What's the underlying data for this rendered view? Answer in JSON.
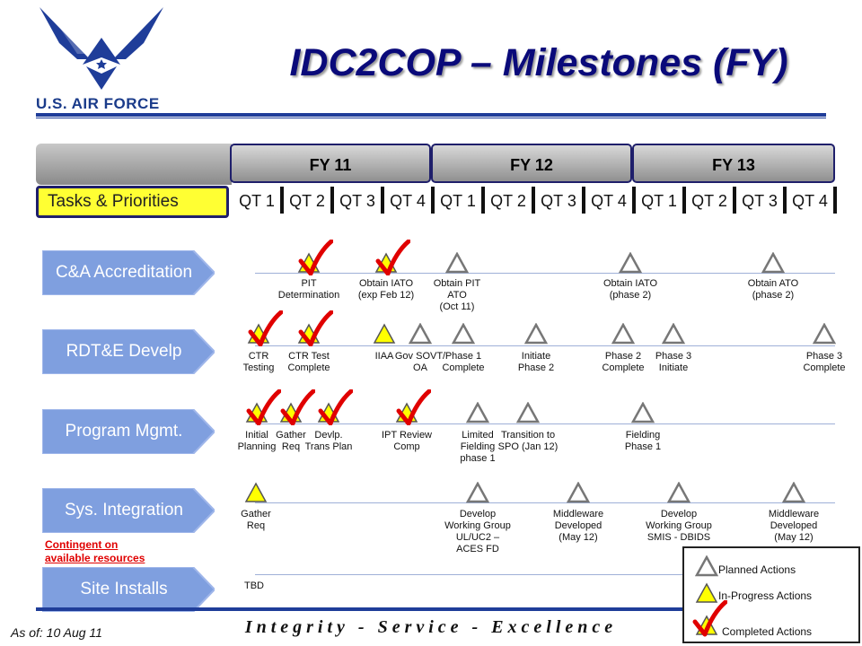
{
  "header": {
    "brand": "U.S. AIR FORCE",
    "title": "IDC2COP – Milestones (FY)"
  },
  "timeline": {
    "fiscal_years": [
      "FY 11",
      "FY 12",
      "FY 13"
    ],
    "tasks_label": "Tasks & Priorities",
    "quarters": [
      "QT 1",
      "QT 2",
      "QT 3",
      "QT 4",
      "QT 1",
      "QT 2",
      "QT 3",
      "QT 4",
      "QT 1",
      "QT 2",
      "QT 3",
      "QT 4"
    ]
  },
  "categories": [
    "C&A Accreditation",
    "RDT&E Develp",
    "Program Mgmt.",
    "Sys. Integration",
    "Site Installs"
  ],
  "milestones": {
    "ca": [
      {
        "status": "completed",
        "label": "PIT\nDetermination"
      },
      {
        "status": "completed",
        "label": "Obtain IATO\n(exp Feb 12)"
      },
      {
        "status": "planned",
        "label": "Obtain PIT\nATO\n(Oct 11)"
      },
      {
        "status": "planned",
        "label": "Obtain IATO\n(phase 2)"
      },
      {
        "status": "planned",
        "label": "Obtain ATO\n(phase 2)"
      }
    ],
    "rdte": [
      {
        "status": "completed",
        "label": "CTR\nTesting"
      },
      {
        "status": "completed",
        "label": "CTR Test\nComplete"
      },
      {
        "status": "in-progress",
        "label": "IIAA"
      },
      {
        "status": "planned",
        "label": "Gov SOVT/\nOA"
      },
      {
        "status": "planned",
        "label": "Phase 1\nComplete"
      },
      {
        "status": "planned",
        "label": "Initiate\nPhase 2"
      },
      {
        "status": "planned",
        "label": "Phase 2\nComplete"
      },
      {
        "status": "planned",
        "label": "Phase 3\nInitiate"
      },
      {
        "status": "planned",
        "label": "Phase 3\nComplete"
      }
    ],
    "pm": [
      {
        "status": "completed",
        "label": "Initial\nPlanning"
      },
      {
        "status": "completed",
        "label": "Gather\nReq"
      },
      {
        "status": "completed",
        "label": "Devlp.\nTrans Plan"
      },
      {
        "status": "completed",
        "label": "IPT Review\nComp"
      },
      {
        "status": "planned",
        "label": "Limited\nFielding\nphase 1"
      },
      {
        "status": "planned",
        "label": "Transition to\nSPO (Jan 12)"
      },
      {
        "status": "planned",
        "label": "Fielding\nPhase 1"
      }
    ],
    "si": [
      {
        "status": "in-progress",
        "label": "Gather\nReq"
      },
      {
        "status": "planned",
        "label": "Develop\nWorking Group\nUL/UC2 –\nACES FD"
      },
      {
        "status": "planned",
        "label": "Middleware\nDeveloped\n(May 12)"
      },
      {
        "status": "planned",
        "label": "Develop\nWorking Group\nSMIS - DBIDS"
      },
      {
        "status": "planned",
        "label": "Middleware\nDeveloped\n(May 12)"
      }
    ],
    "site": {
      "tbd": "TBD"
    }
  },
  "contingent_note": "Contingent on\navailable resources",
  "legend": {
    "planned": "Planned Actions",
    "in_progress": "In-Progress Actions",
    "completed": "Completed Actions"
  },
  "footer": {
    "motto": "Integrity - Service - Excellence",
    "as_of": "As of: 10 Aug 11"
  },
  "colors": {
    "navy": "#1f3d99",
    "arrow_fill": "#7f9fdf",
    "tasks_yellow": "#ffff33",
    "inprogress_yellow": "#ffff00",
    "check_red": "#e00000",
    "contingent_red": "#e00000"
  }
}
